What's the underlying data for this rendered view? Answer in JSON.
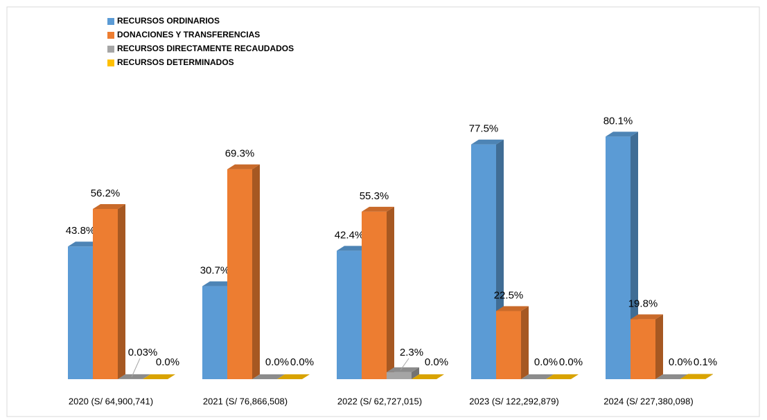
{
  "chart_data": {
    "type": "bar3d",
    "categories": [
      "2020 (S/ 64,900,741)",
      "2021 (S/ 76,866,508)",
      "2022 (S/ 62,727,015)",
      "2023 (S/ 122,292,879)",
      "2024 (S/ 227,380,098)"
    ],
    "ylim": [
      0,
      90
    ],
    "series": [
      {
        "name": "RECURSOS ORDINARIOS",
        "color": "#5b9bd5",
        "values": [
          43.8,
          30.7,
          42.4,
          77.5,
          80.1
        ],
        "value_labels": [
          "43.8%",
          "30.7%",
          "42.4%",
          "77.5%",
          "80.1%"
        ]
      },
      {
        "name": "DONACIONES Y TRANSFERENCIAS",
        "color": "#ed7d31",
        "values": [
          56.2,
          69.3,
          55.3,
          22.5,
          19.8
        ],
        "value_labels": [
          "56.2%",
          "69.3%",
          "55.3%",
          "22.5%",
          "19.8%"
        ]
      },
      {
        "name": "RECURSOS DIRECTAMENTE RECAUDADOS",
        "color": "#a5a5a5",
        "values": [
          0.03,
          0.0,
          2.3,
          0.0,
          0.0
        ],
        "value_labels": [
          "0.03%",
          "0.0%",
          "2.3%",
          "0.0%",
          "0.0%"
        ]
      },
      {
        "name": "RECURSOS DETERMINADOS",
        "color": "#ffc000",
        "values": [
          0.0,
          0.0,
          0.0,
          0.0,
          0.1
        ],
        "value_labels": [
          "0.0%",
          "0.0%",
          "0.0%",
          "0.0%",
          "0.1%"
        ]
      }
    ]
  }
}
